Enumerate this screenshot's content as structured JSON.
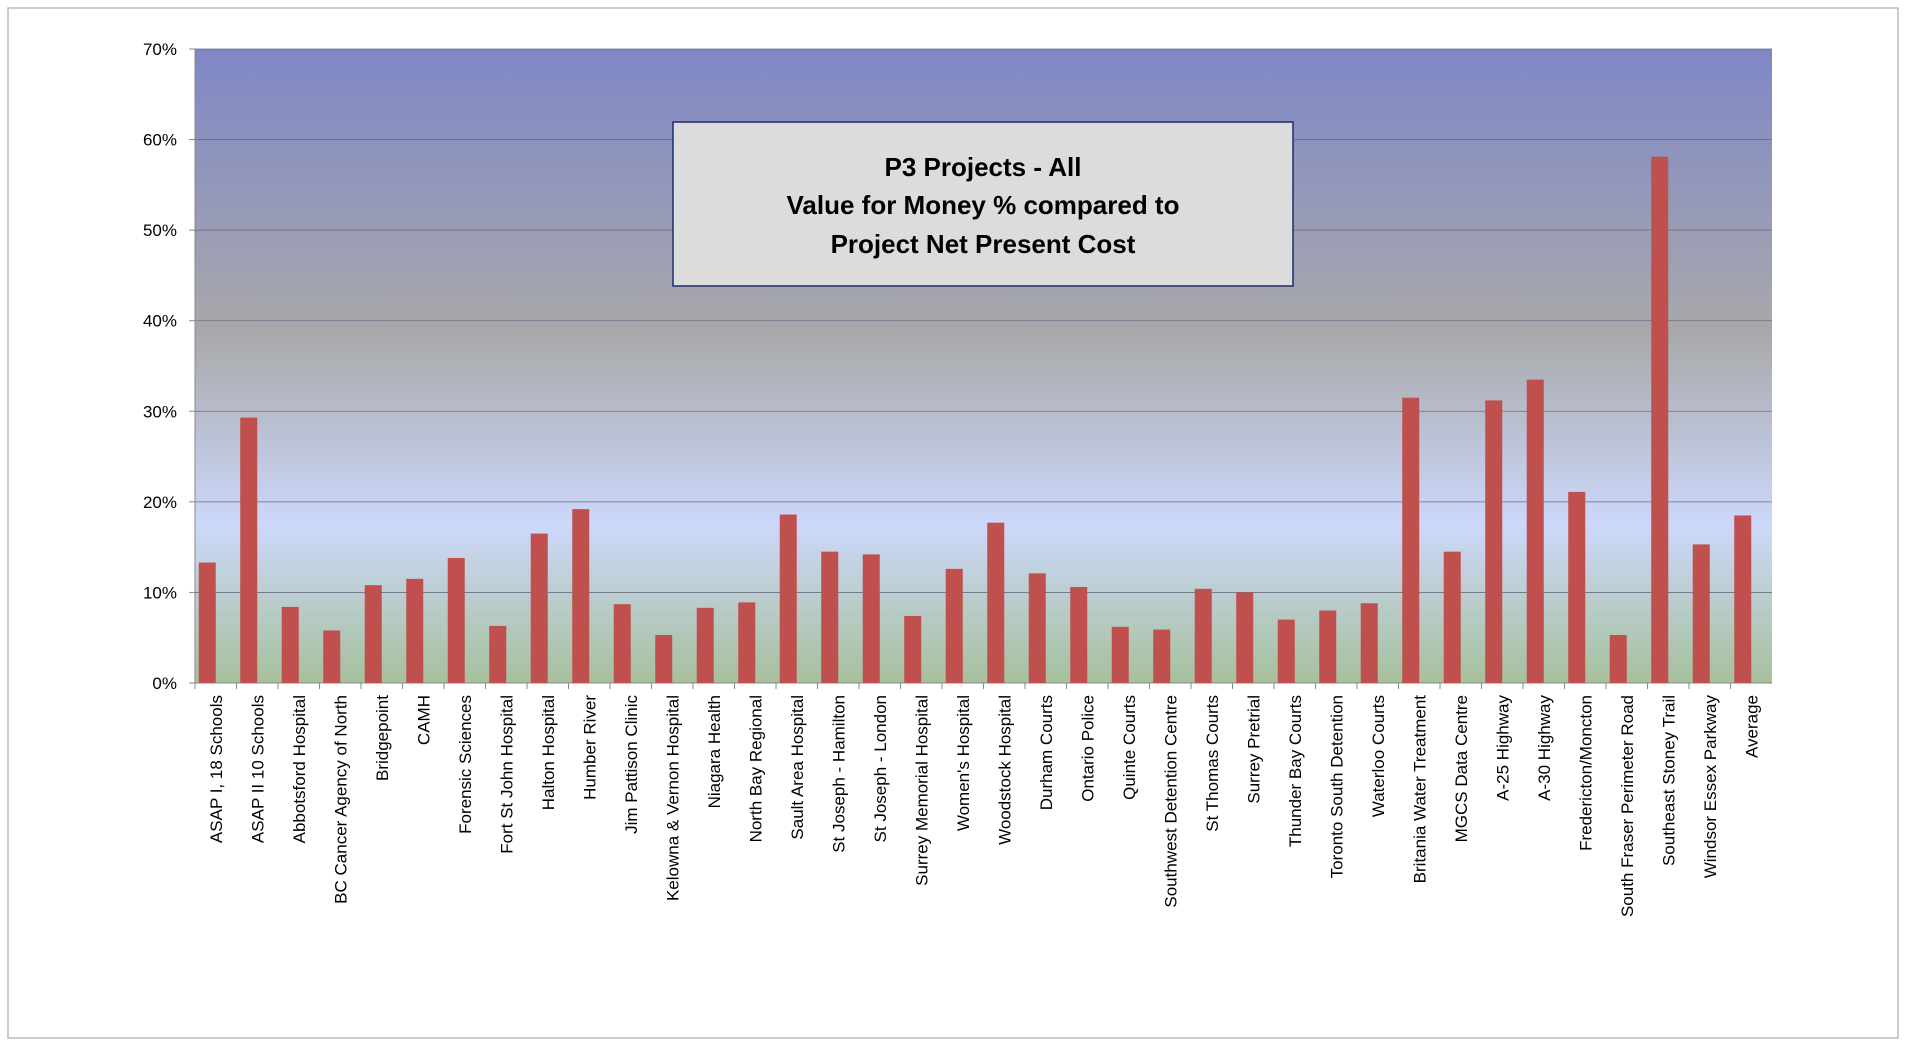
{
  "chart_data": {
    "type": "bar",
    "title": [
      "P3 Projects - All",
      "Value for Money % compared to",
      "Project Net Present Cost"
    ],
    "categories": [
      "ASAP I, 18 Schools",
      "ASAP II 10 Schools",
      "Abbotsford Hospital",
      "BC Cancer Agency of North",
      "Bridgepoint",
      "CAMH",
      "Forensic Sciences",
      "Fort St John Hospital",
      "Halton Hospital",
      "Humber River",
      "Jim Pattison Clinic",
      "Kelowna & Vernon Hospital",
      "Niagara Health",
      "North Bay Regional",
      "Sault Area Hospital",
      "St Joseph - Hamilton",
      "St Joseph - London",
      "Surrey Memorial Hospital",
      "Women's Hospital",
      "Woodstock Hospital",
      "Durham Courts",
      "Ontario Police",
      "Quinte Courts",
      "Southwest Detention Centre",
      "St Thomas Courts",
      "Surrey Pretrial",
      "Thunder Bay Courts",
      "Toronto South Detention",
      "Waterloo Courts",
      "Britania Water Treatment",
      "MGCS Data Centre",
      "A-25 Highway",
      "A-30 Highway",
      "Fredericton/Moncton",
      "South Fraser Perimeter Road",
      "Southeast Stoney Trail",
      "Windsor Essex Parkway",
      "Average"
    ],
    "values": [
      13.3,
      29.3,
      8.4,
      5.8,
      10.8,
      11.5,
      13.8,
      6.3,
      16.5,
      19.2,
      8.7,
      5.3,
      8.3,
      8.9,
      18.6,
      14.5,
      14.2,
      7.4,
      12.6,
      17.7,
      12.1,
      10.6,
      6.2,
      5.9,
      10.4,
      10.0,
      7.0,
      8.0,
      8.8,
      31.5,
      14.5,
      31.2,
      33.5,
      21.1,
      5.3,
      58.1,
      15.3,
      18.5
    ],
    "color": "#c0504d",
    "ylim": [
      0,
      70
    ],
    "yticks": [
      {
        "value": 0,
        "label": "0%"
      },
      {
        "value": 10,
        "label": "10%"
      },
      {
        "value": 20,
        "label": "20%"
      },
      {
        "value": 30,
        "label": "30%"
      },
      {
        "value": 40,
        "label": "40%"
      },
      {
        "value": 50,
        "label": "50%"
      },
      {
        "value": 60,
        "label": "60%"
      },
      {
        "value": 70,
        "label": "70%"
      }
    ],
    "grid": true
  }
}
